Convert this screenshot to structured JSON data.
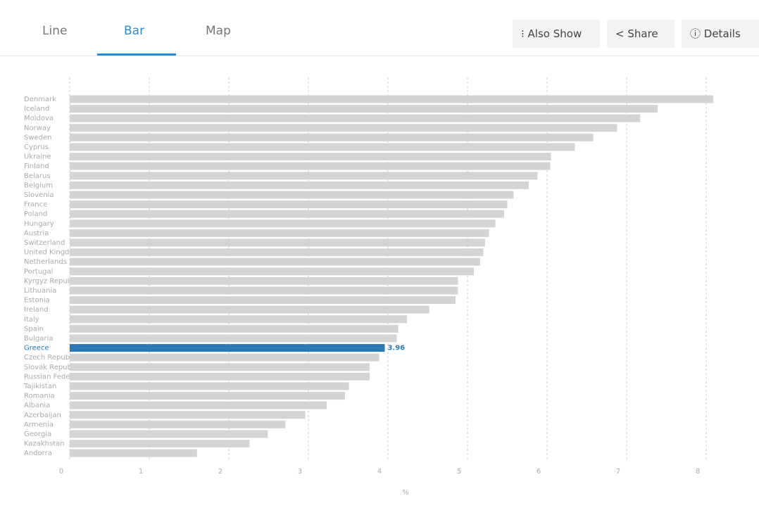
{
  "tabs": [
    "Line",
    "Bar",
    "Map"
  ],
  "active_tab": "Bar",
  "buttons": [
    "Also Show",
    "Share",
    "Details"
  ],
  "chart_data": {
    "type": "bar",
    "orientation": "horizontal",
    "x_label": "%",
    "categories": [
      "Denmark",
      "Iceland",
      "Moldova",
      "Norway",
      "Sweden",
      "Cyprus",
      "Ukraine",
      "Finland",
      "Belarus",
      "Belgium",
      "Slovenia",
      "France",
      "Poland",
      "Hungary",
      "Austria",
      "Switzerland",
      "United Kingdom",
      "Netherlands",
      "Portugal",
      "Kyrgyz Republic",
      "Lithuania",
      "Estonia",
      "Ireland",
      "Italy",
      "Spain",
      "Bulgaria",
      "Greece",
      "Czech Republic",
      "Slovak Republic",
      "Russian Federation",
      "Tajikistan",
      "Romania",
      "Albania",
      "Azerbaijan",
      "Armenia",
      "Georgia",
      "Kazakhstan",
      "Andorra"
    ],
    "values": [
      8.09,
      7.39,
      7.17,
      6.88,
      6.58,
      6.35,
      6.05,
      6.04,
      5.88,
      5.77,
      5.58,
      5.5,
      5.46,
      5.35,
      5.27,
      5.22,
      5.2,
      5.16,
      5.08,
      4.88,
      4.88,
      4.85,
      4.52,
      4.24,
      4.13,
      4.11,
      3.96,
      3.89,
      3.77,
      3.77,
      3.51,
      3.46,
      3.23,
      2.96,
      2.71,
      2.49,
      2.26,
      1.6
    ],
    "color": "#d4d4d4",
    "highlight": "Greece",
    "highlight_color": "#2a7ab8",
    "xlim": [
      0,
      8.2
    ],
    "xticks": [
      0,
      1,
      2,
      3,
      4,
      5,
      6,
      7,
      8
    ],
    "grid": true
  }
}
